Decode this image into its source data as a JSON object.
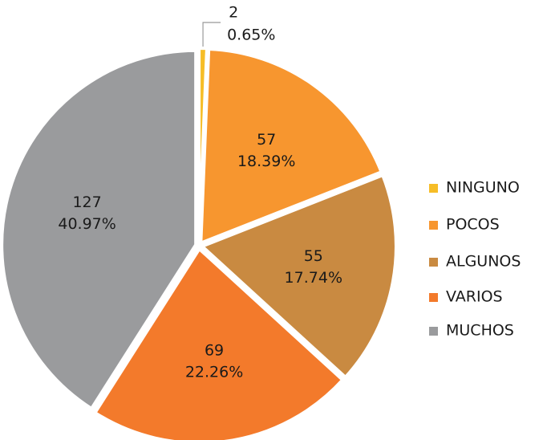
{
  "chart_data": {
    "type": "pie",
    "categories": [
      "NINGUNO",
      "POCOS",
      "ALGUNOS",
      "VARIOS",
      "MUCHOS"
    ],
    "counts": [
      2,
      57,
      55,
      69,
      127
    ],
    "values": [
      0.65,
      18.39,
      17.74,
      22.26,
      40.97
    ],
    "value_labels": [
      "0.65%",
      "18.39%",
      "17.74%",
      "22.26%",
      "40.97%"
    ],
    "colors": [
      "#f6bd27",
      "#f7962f",
      "#c98a41",
      "#f37a2b",
      "#9a9b9d"
    ],
    "legend": "right"
  }
}
